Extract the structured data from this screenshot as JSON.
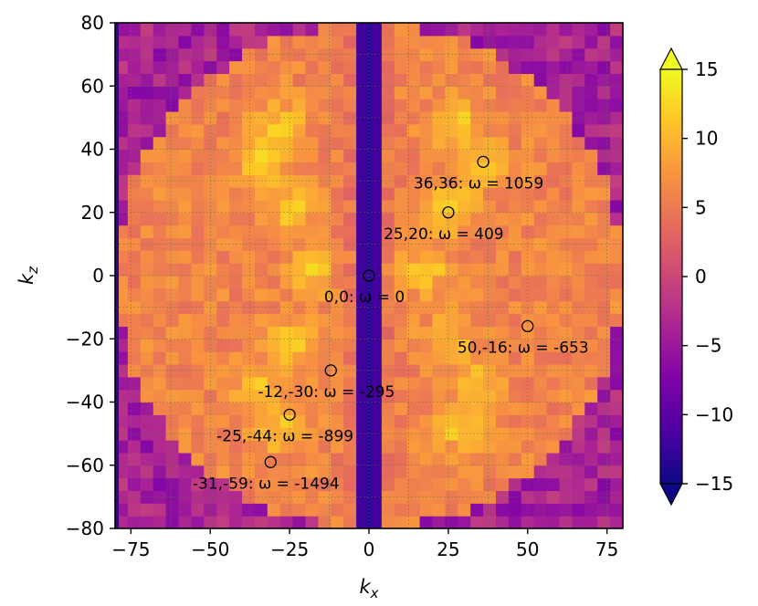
{
  "chart_data": {
    "type": "heatmap",
    "title": "",
    "colormap": "plasma",
    "xlabel": {
      "base": "k",
      "sub": "x"
    },
    "ylabel": {
      "base": "k",
      "sub": "z"
    },
    "xlim": [
      -80,
      80
    ],
    "ylim": [
      -80,
      80
    ],
    "xticks": [
      -75,
      -50,
      -25,
      0,
      25,
      50,
      75
    ],
    "xtick_labels": [
      "−75",
      "−50",
      "−25",
      "0",
      "25",
      "50",
      "75"
    ],
    "yticks": [
      -80,
      -60,
      -40,
      -20,
      0,
      20,
      40,
      60,
      80
    ],
    "ytick_labels": [
      "−80",
      "−60",
      "−40",
      "−20",
      "0",
      "20",
      "40",
      "60",
      "80"
    ],
    "grid": true,
    "colorbar": {
      "range": [
        -15,
        15
      ],
      "extend": "both",
      "ticks": [
        -15,
        -10,
        -5,
        0,
        5,
        10,
        15
      ],
      "tick_labels": [
        "−15",
        "−10",
        "−5",
        "0",
        "5",
        "10",
        "15"
      ]
    },
    "disk_radius": 80,
    "marked_points": [
      {
        "kx": 36,
        "kz": 36,
        "label": "36,36: ω = 1059"
      },
      {
        "kx": 25,
        "kz": 20,
        "label": "25,20: ω = 409"
      },
      {
        "kx": 0,
        "kz": 0,
        "label": "0,0: ω = 0"
      },
      {
        "kx": 50,
        "kz": -16,
        "label": "50,-16: ω = -653"
      },
      {
        "kx": -12,
        "kz": -30,
        "label": "-12,-30: ω = -295"
      },
      {
        "kx": -25,
        "kz": -44,
        "label": "-25,-44: ω = -899"
      },
      {
        "kx": -31,
        "kz": -59,
        "label": "-31,-59: ω = -1494"
      }
    ]
  }
}
